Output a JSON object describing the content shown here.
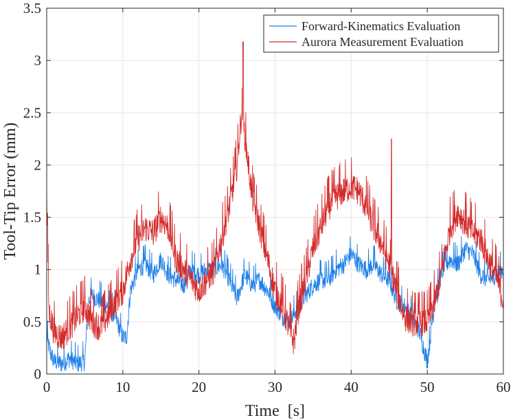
{
  "chart_data": {
    "type": "line",
    "title": "",
    "xlabel": "Time  [s]",
    "ylabel": "Tool-Tip Error (mm)",
    "xlim": [
      0,
      60
    ],
    "ylim": [
      0,
      3.5
    ],
    "xticks": [
      0,
      10,
      20,
      30,
      40,
      50,
      60
    ],
    "xtick_labels": [
      "0",
      "10",
      "20",
      "30",
      "40",
      "50",
      "60"
    ],
    "yticks": [
      0,
      0.5,
      1,
      1.5,
      2,
      2.5,
      3,
      3.5
    ],
    "ytick_labels": [
      "0",
      "0.5",
      "1",
      "1.5",
      "2",
      "2.5",
      "3",
      "3.5"
    ],
    "grid": true,
    "legend_position": "top-right",
    "series": [
      {
        "name": "Forward-Kinematics Evaluation",
        "color": "#1f7fe8",
        "x": [
          0,
          0.5,
          1,
          2,
          3,
          4,
          5,
          5.5,
          6,
          7,
          8,
          9,
          10,
          10.5,
          11,
          12,
          13,
          14,
          15,
          16,
          17,
          18,
          19,
          20,
          21,
          22,
          23,
          24,
          25,
          26,
          27,
          28,
          29,
          30,
          31,
          32,
          33,
          34,
          35,
          36,
          37,
          38,
          39,
          40,
          41,
          42,
          43,
          44,
          45,
          46,
          47,
          48,
          49,
          50,
          51,
          52,
          53,
          54,
          55,
          56,
          57,
          58,
          59,
          60
        ],
        "y": [
          0.35,
          0.2,
          0.12,
          0.1,
          0.15,
          0.1,
          0.12,
          0.7,
          0.75,
          0.7,
          0.65,
          0.55,
          0.35,
          0.35,
          0.8,
          1.0,
          1.05,
          0.95,
          1.1,
          0.95,
          0.9,
          0.85,
          1.0,
          0.95,
          1.0,
          1.0,
          1.05,
          0.9,
          0.72,
          0.95,
          0.85,
          0.9,
          0.8,
          0.65,
          0.55,
          0.5,
          0.65,
          0.75,
          0.85,
          0.9,
          0.9,
          1.0,
          1.05,
          1.15,
          1.05,
          1.0,
          1.05,
          0.95,
          0.9,
          0.7,
          0.65,
          0.55,
          0.4,
          0.12,
          0.7,
          1.0,
          1.1,
          1.05,
          1.2,
          1.15,
          0.95,
          0.9,
          0.95,
          1.0
        ],
        "noise": 0.09
      },
      {
        "name": "Aurora Measurement Evaluation",
        "color": "#d42a2a",
        "x": [
          0,
          0.3,
          1,
          2,
          3,
          4,
          5,
          6,
          7,
          8,
          9,
          10,
          11,
          12,
          13,
          14,
          15,
          16,
          17,
          18,
          19,
          20,
          21,
          22,
          23,
          24,
          25,
          25.6,
          26,
          27,
          28,
          29,
          30,
          31,
          32,
          32.5,
          33,
          34,
          35,
          36,
          37,
          38,
          39,
          40,
          41,
          42,
          43,
          44,
          45,
          46,
          47,
          48,
          49,
          50,
          51,
          52,
          53,
          54,
          55,
          56,
          57,
          58,
          59,
          60
        ],
        "y": [
          1.7,
          0.6,
          0.4,
          0.35,
          0.45,
          0.55,
          0.65,
          0.5,
          0.45,
          0.55,
          0.7,
          0.8,
          1.1,
          1.3,
          1.4,
          1.35,
          1.5,
          1.4,
          1.1,
          1.0,
          0.9,
          0.8,
          0.9,
          1.0,
          1.3,
          1.6,
          2.0,
          2.5,
          2.3,
          1.7,
          1.4,
          1.1,
          0.8,
          0.65,
          0.4,
          0.3,
          0.6,
          0.9,
          1.2,
          1.4,
          1.6,
          1.7,
          1.75,
          1.8,
          1.75,
          1.6,
          1.4,
          1.25,
          1.05,
          0.8,
          0.55,
          0.5,
          0.5,
          0.5,
          0.7,
          1.0,
          1.4,
          1.55,
          1.45,
          1.35,
          1.3,
          1.1,
          0.95,
          0.7
        ],
        "noise": 0.14
      }
    ],
    "annotations": [
      {
        "series": 1,
        "x": 45.3,
        "y": 2.25,
        "note": "isolated spike"
      },
      {
        "series": 1,
        "x": 25.8,
        "y": 3.18,
        "note": "maximum spike"
      }
    ]
  }
}
